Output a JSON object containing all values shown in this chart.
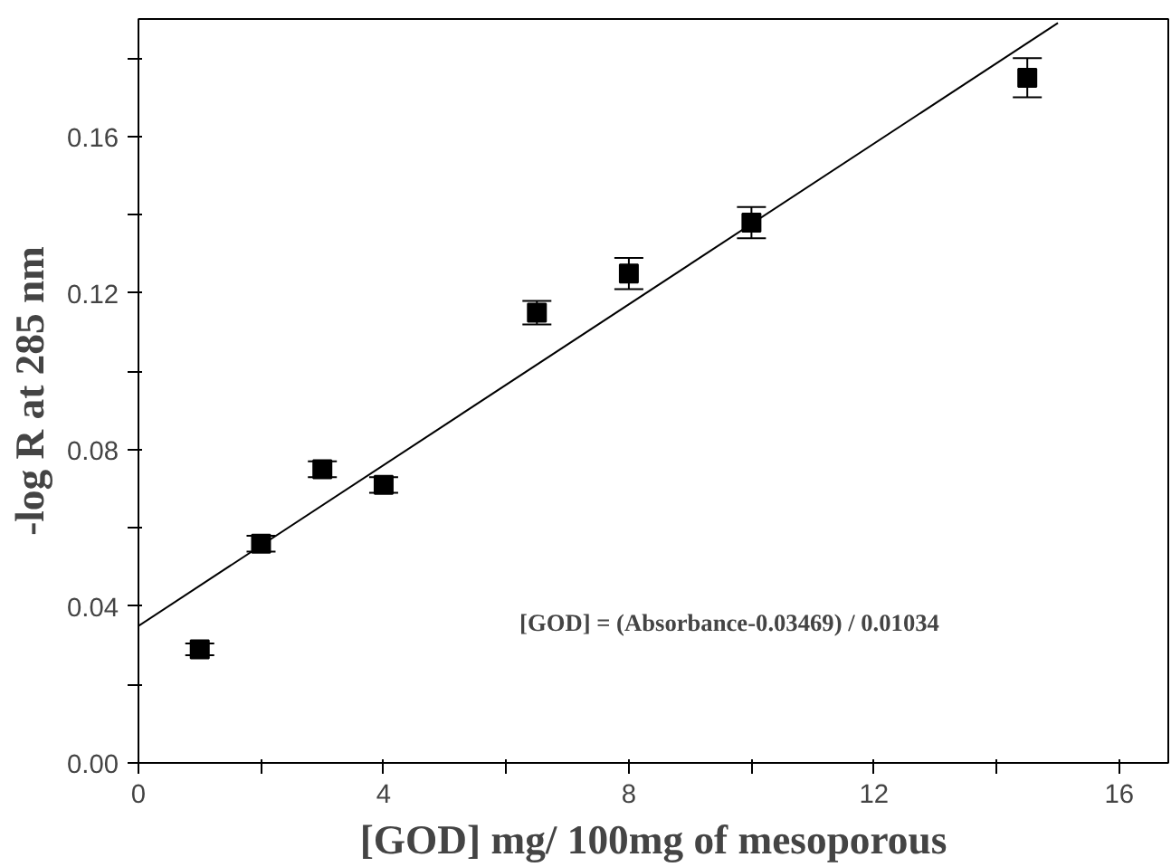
{
  "chart_data": {
    "type": "scatter",
    "xlabel": "[GOD] mg/ 100mg of mesoporous",
    "ylabel": "-log R at 285 nm",
    "xlim": [
      0,
      16.8
    ],
    "ylim": [
      0,
      0.19
    ],
    "xticks": [
      0,
      {
        "value": 2,
        "label": null
      },
      4,
      {
        "value": 6,
        "label": null
      },
      8,
      {
        "value": 10,
        "label": null
      },
      12,
      {
        "value": 14,
        "label": null
      },
      16
    ],
    "yticks": [
      {
        "value": 0,
        "label": "0.00"
      },
      {
        "value": 0.02,
        "label": null
      },
      {
        "value": 0.04,
        "label": "0.04"
      },
      {
        "value": 0.06,
        "label": null
      },
      {
        "value": 0.08,
        "label": "0.08"
      },
      {
        "value": 0.1,
        "label": null
      },
      {
        "value": 0.12,
        "label": "0.12"
      },
      {
        "value": 0.14,
        "label": null
      },
      {
        "value": 0.16,
        "label": "0.16"
      },
      {
        "value": 0.18,
        "label": null
      }
    ],
    "grid": false,
    "marker": "square",
    "annotations": [
      "[GOD] = (Absorbance-0.03469) / 0.01034"
    ],
    "series": [
      {
        "color": "#000000",
        "x": [
          1,
          2,
          3,
          4,
          6.5,
          8,
          10,
          14.5
        ],
        "values": [
          0.029,
          0.056,
          0.075,
          0.071,
          0.115,
          0.125,
          0.138,
          0.175
        ],
        "errors": [
          0.0015,
          0.002,
          0.002,
          0.002,
          0.003,
          0.004,
          0.004,
          0.005
        ]
      },
      {
        "type": "line",
        "color": "#000000",
        "line_style": "solid",
        "marker": "none",
        "x": [
          0,
          15
        ],
        "values": [
          0.035,
          0.189
        ]
      }
    ]
  }
}
